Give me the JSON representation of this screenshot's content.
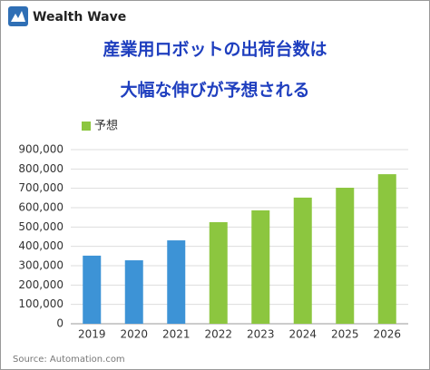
{
  "brand": "Wealth Wave",
  "chart_data": {
    "type": "bar",
    "title_lines": [
      "産業用ロボットの出荷台数は",
      "大幅な伸びが予想される"
    ],
    "categories": [
      "2019",
      "2020",
      "2021",
      "2022",
      "2023",
      "2024",
      "2025",
      "2026"
    ],
    "values": [
      352000,
      328000,
      431000,
      525000,
      586000,
      652000,
      703000,
      773000
    ],
    "colors": [
      "#3d93d6",
      "#3d93d6",
      "#3d93d6",
      "#8cc63f",
      "#8cc63f",
      "#8cc63f",
      "#8cc63f",
      "#8cc63f"
    ],
    "legend": {
      "label": "予想",
      "color": "#8cc63f",
      "position": "top-left"
    },
    "ylim": [
      0,
      900000
    ],
    "yticks": [
      0,
      {
        "value": 100000,
        "label": "100,000"
      },
      {
        "value": 200000,
        "label": "200,000"
      },
      {
        "value": 300000,
        "label": "300,000"
      },
      {
        "value": 400000,
        "label": "400,000"
      },
      {
        "value": 500000,
        "label": "500,000"
      },
      {
        "value": 600000,
        "label": "600,000"
      },
      {
        "value": 700000,
        "label": "700,000"
      },
      {
        "value": 800000,
        "label": "800,000"
      },
      {
        "value": 900000,
        "label": "900,000"
      }
    ],
    "grid": true,
    "source": "Source: Automation.com"
  }
}
